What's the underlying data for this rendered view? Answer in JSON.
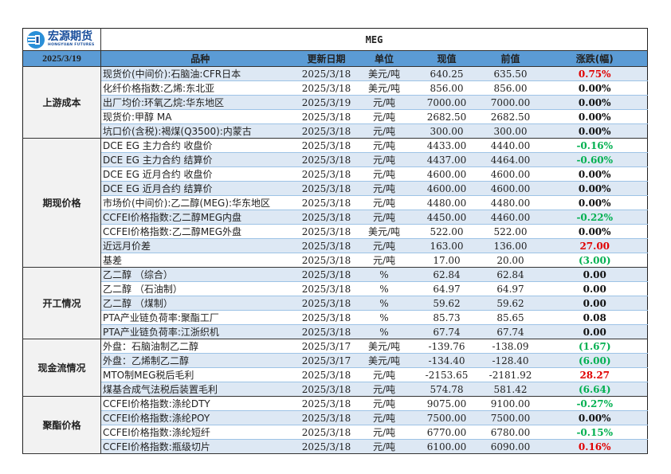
{
  "logo": {
    "cn": "宏源期货",
    "en": "HONGYUAN FUTURES"
  },
  "title": "MEG",
  "date": "2025/3/19",
  "columns": [
    "品种",
    "更新日期",
    "单位",
    "现值",
    "前值",
    "涨跌(幅)"
  ],
  "colors": {
    "header": "#5b9bd5",
    "shade": "#dde8f4",
    "up": "#e00000",
    "down": "#00b050"
  },
  "groups": [
    {
      "name": "上游成本",
      "rows": [
        [
          "现货价(中间价):石脑油:CFR日本",
          "2025/3/18",
          "美元/吨",
          "640.25",
          "635.50",
          "0.75%",
          "up"
        ],
        [
          "化纤价格指数:乙烯:东北亚",
          "2025/3/18",
          "美元/吨",
          "856.00",
          "856.00",
          "0.00%",
          "flat"
        ],
        [
          "出厂均价:环氧乙烷:华东地区",
          "2025/3/19",
          "元/吨",
          "7000.00",
          "7000.00",
          "0.00%",
          "flat"
        ],
        [
          "现货价:甲醇 MA",
          "2025/3/18",
          "元/吨",
          "2682.50",
          "2682.50",
          "0.00%",
          "flat"
        ],
        [
          "坑口价(含税):褐煤(Q3500):内蒙古",
          "2025/3/18",
          "元/吨",
          "300.00",
          "300.00",
          "0.00%",
          "flat"
        ]
      ]
    },
    {
      "name": "期现价格",
      "rows": [
        [
          "DCE EG 主力合约 收盘价",
          "2025/3/18",
          "元/吨",
          "4433.00",
          "4440.00",
          "-0.16%",
          "down"
        ],
        [
          "DCE EG 主力合约 结算价",
          "2025/3/18",
          "元/吨",
          "4437.00",
          "4464.00",
          "-0.60%",
          "down"
        ],
        [
          "DCE EG 近月合约 收盘价",
          "2025/3/18",
          "元/吨",
          "4600.00",
          "4600.00",
          "0.00%",
          "flat"
        ],
        [
          "DCE EG 近月合约 结算价",
          "2025/3/18",
          "元/吨",
          "4600.00",
          "4600.00",
          "0.00%",
          "flat"
        ],
        [
          "市场价(中间价):乙二醇(MEG):华东地区",
          "2025/3/18",
          "元/吨",
          "4480.00",
          "4480.00",
          "0.00%",
          "flat"
        ],
        [
          "CCFEI价格指数:乙二醇MEG内盘",
          "2025/3/18",
          "元/吨",
          "4450.00",
          "4460.00",
          "-0.22%",
          "down"
        ],
        [
          "CCFEI价格指数:乙二醇MEG外盘",
          "2025/3/18",
          "美元/吨",
          "522.00",
          "522.00",
          "0.00%",
          "flat"
        ],
        [
          "近远月价差",
          "2025/3/18",
          "元/吨",
          "163.00",
          "136.00",
          "27.00",
          "up"
        ],
        [
          "基差",
          "2025/3/18",
          "元/吨",
          "17.00",
          "20.00",
          "(3.00)",
          "down"
        ]
      ]
    },
    {
      "name": "开工情况",
      "rows": [
        [
          "乙二醇 （综合）",
          "2025/3/18",
          "%",
          "62.84",
          "62.84",
          "0.00",
          "flat"
        ],
        [
          "乙二醇 （石油制）",
          "2025/3/18",
          "%",
          "64.97",
          "64.97",
          "0.00",
          "flat"
        ],
        [
          "乙二醇 （煤制）",
          "2025/3/18",
          "%",
          "59.62",
          "59.62",
          "0.00",
          "flat"
        ],
        [
          "PTA产业链负荷率:聚酯工厂",
          "2025/3/18",
          "%",
          "85.73",
          "85.65",
          "0.08",
          "flat"
        ],
        [
          "PTA产业链负荷率:江浙织机",
          "2025/3/18",
          "%",
          "67.74",
          "67.74",
          "0.00",
          "flat"
        ]
      ]
    },
    {
      "name": "现金流情况",
      "rows": [
        [
          "外盘：石脑油制乙二醇",
          "2025/3/17",
          "美元/吨",
          "-139.76",
          "-138.09",
          "(1.67)",
          "down"
        ],
        [
          "外盘：乙烯制乙二醇",
          "2025/3/17",
          "美元/吨",
          "-134.40",
          "-128.40",
          "(6.00)",
          "down"
        ],
        [
          "MTO制MEG税后毛利",
          "2025/3/18",
          "元/吨",
          "-2153.65",
          "-2181.92",
          "28.27",
          "up"
        ],
        [
          "煤基合成气法税后装置毛利",
          "2025/3/18",
          "元/吨",
          "574.78",
          "581.42",
          "(6.64)",
          "down"
        ]
      ]
    },
    {
      "name": "聚酯价格",
      "rows": [
        [
          "CCFEI价格指数:涤纶DTY",
          "2025/3/18",
          "元/吨",
          "9075.00",
          "9100.00",
          "-0.27%",
          "down"
        ],
        [
          "CCFEI价格指数:涤纶POY",
          "2025/3/18",
          "元/吨",
          "7500.00",
          "7500.00",
          "0.00%",
          "flat"
        ],
        [
          "CCFEI价格指数:涤纶短纤",
          "2025/3/18",
          "元/吨",
          "6770.00",
          "6780.00",
          "-0.15%",
          "down"
        ],
        [
          "CCFEI价格指数:瓶级切片",
          "2025/3/18",
          "元/吨",
          "6100.00",
          "6090.00",
          "0.16%",
          "up"
        ]
      ]
    }
  ]
}
